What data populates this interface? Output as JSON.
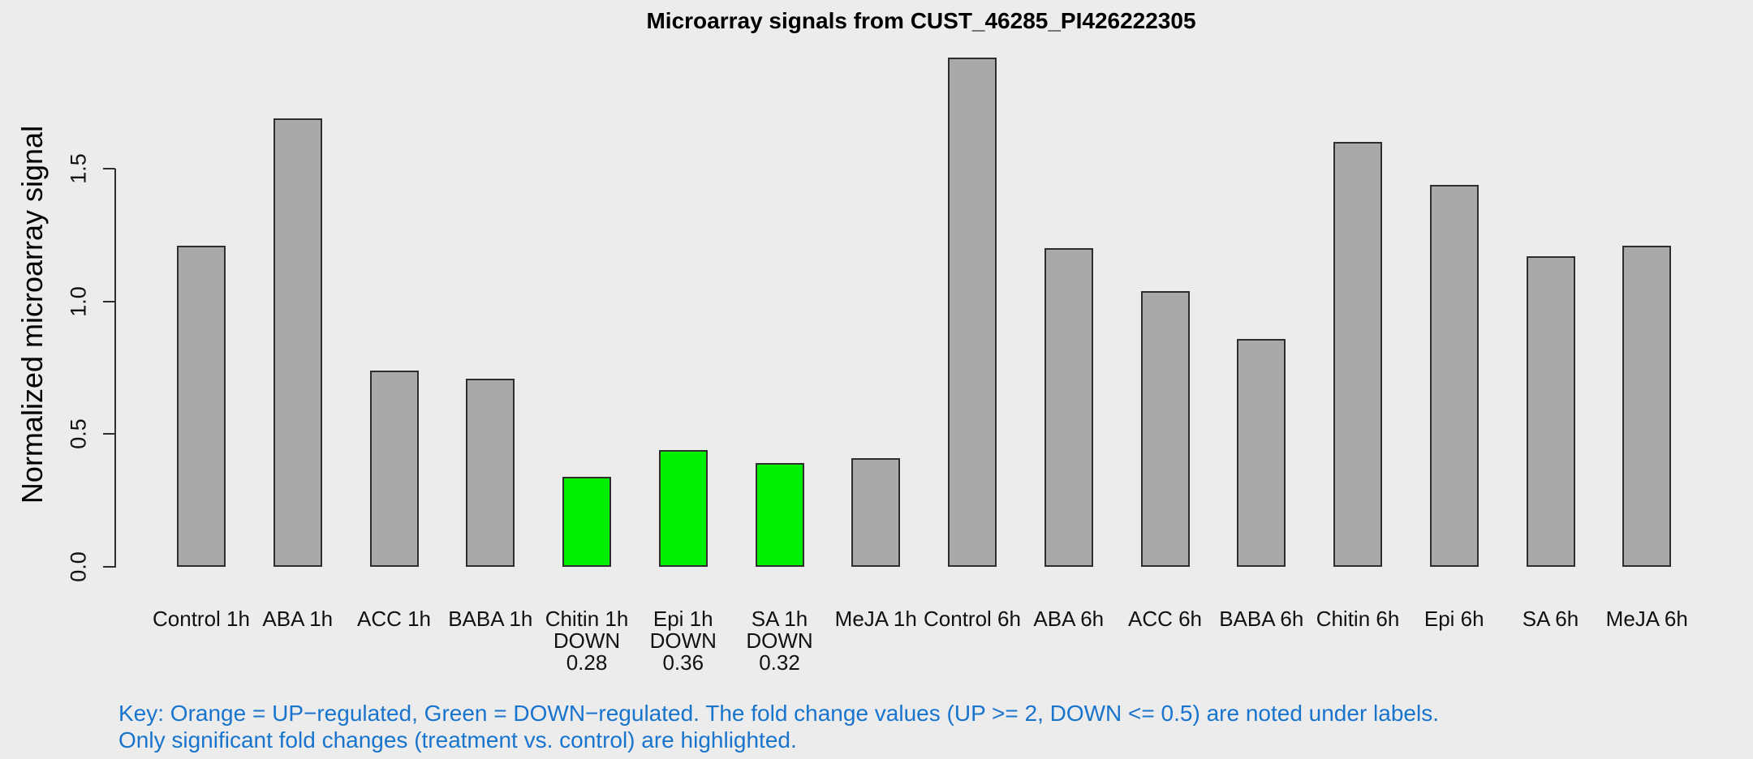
{
  "chart_data": {
    "type": "bar",
    "title": "Microarray signals from CUST_46285_PI426222305",
    "ylabel": "Normalized microarray signal",
    "xlabel": "",
    "ylim": [
      0,
      1.95
    ],
    "yticks": [
      0,
      0.5,
      1.0,
      1.5
    ],
    "ytick_labels": [
      "0.0",
      "0.5",
      "1.0",
      "1.5"
    ],
    "grid": false,
    "legend_position": "bottom",
    "categories": [
      "Control 1h",
      "ABA 1h",
      "ACC 1h",
      "BABA 1h",
      "Chitin 1h",
      "Epi 1h",
      "SA 1h",
      "MeJA 1h",
      "Control 6h",
      "ABA 6h",
      "ACC 6h",
      "BABA 6h",
      "Chitin 6h",
      "Epi 6h",
      "SA 6h",
      "MeJA 6h"
    ],
    "values": [
      1.21,
      1.69,
      0.74,
      0.71,
      0.34,
      0.44,
      0.39,
      0.41,
      1.92,
      1.2,
      1.04,
      0.86,
      1.6,
      1.44,
      1.17,
      1.21
    ],
    "annotations": [
      {
        "category": "Chitin 1h",
        "regulation": "DOWN",
        "fold": "0.28"
      },
      {
        "category": "Epi 1h",
        "regulation": "DOWN",
        "fold": "0.36"
      },
      {
        "category": "SA 1h",
        "regulation": "DOWN",
        "fold": "0.32"
      }
    ],
    "colors": {
      "background": "#ECECEC",
      "bar_default": "#A9A9A9",
      "bar_down": "#00EE00",
      "bar_up": "#FF8C00",
      "bar_border": "#2e2e2e",
      "axis_text": "#111111"
    }
  },
  "key": {
    "line1": "Key: Orange = UP−regulated, Green = DOWN−regulated. The fold change values (UP >= 2, DOWN <= 0.5) are noted under labels.",
    "line2": "Only significant fold changes (treatment vs. control) are highlighted.",
    "color": "#1874CD"
  }
}
